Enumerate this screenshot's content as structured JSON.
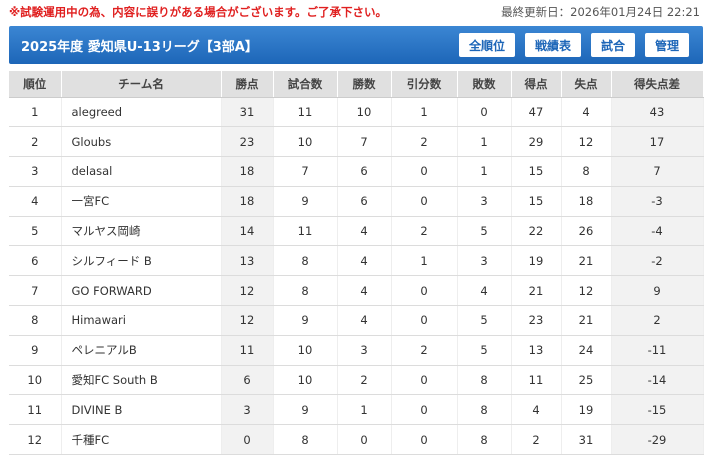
{
  "notice": "※試験運用中の為、内容に誤りがある場合がございます。ご了承下さい。",
  "updated": "最終更新日：2026年01月24日 22:21",
  "header": {
    "title": "2025年度 愛知県U-13リーグ【3部A】",
    "nav": [
      "全順位",
      "戦績表",
      "試合",
      "管理"
    ]
  },
  "table": {
    "columns": [
      "順位",
      "チーム名",
      "勝点",
      "試合数",
      "勝数",
      "引分数",
      "敗数",
      "得点",
      "失点",
      "得失点差"
    ],
    "rows": [
      [
        "1",
        "alegreed",
        "31",
        "11",
        "10",
        "1",
        "0",
        "47",
        "4",
        "43"
      ],
      [
        "2",
        "Gloubs",
        "23",
        "10",
        "7",
        "2",
        "1",
        "29",
        "12",
        "17"
      ],
      [
        "3",
        "delasal",
        "18",
        "7",
        "6",
        "0",
        "1",
        "15",
        "8",
        "7"
      ],
      [
        "4",
        "一宮FC",
        "18",
        "9",
        "6",
        "0",
        "3",
        "15",
        "18",
        "-3"
      ],
      [
        "5",
        "マルヤス岡崎",
        "14",
        "11",
        "4",
        "2",
        "5",
        "22",
        "26",
        "-4"
      ],
      [
        "6",
        "シルフィード B",
        "13",
        "8",
        "4",
        "1",
        "3",
        "19",
        "21",
        "-2"
      ],
      [
        "7",
        "GO FORWARD",
        "12",
        "8",
        "4",
        "0",
        "4",
        "21",
        "12",
        "9"
      ],
      [
        "8",
        "Himawari",
        "12",
        "9",
        "4",
        "0",
        "5",
        "23",
        "21",
        "2"
      ],
      [
        "9",
        "ペレニアルB",
        "11",
        "10",
        "3",
        "2",
        "5",
        "13",
        "24",
        "-11"
      ],
      [
        "10",
        "愛知FC South B",
        "6",
        "10",
        "2",
        "0",
        "8",
        "11",
        "25",
        "-14"
      ],
      [
        "11",
        "DIVINE B",
        "3",
        "9",
        "1",
        "0",
        "8",
        "4",
        "19",
        "-15"
      ],
      [
        "12",
        "千種FC",
        "0",
        "8",
        "0",
        "0",
        "8",
        "2",
        "31",
        "-29"
      ]
    ]
  }
}
